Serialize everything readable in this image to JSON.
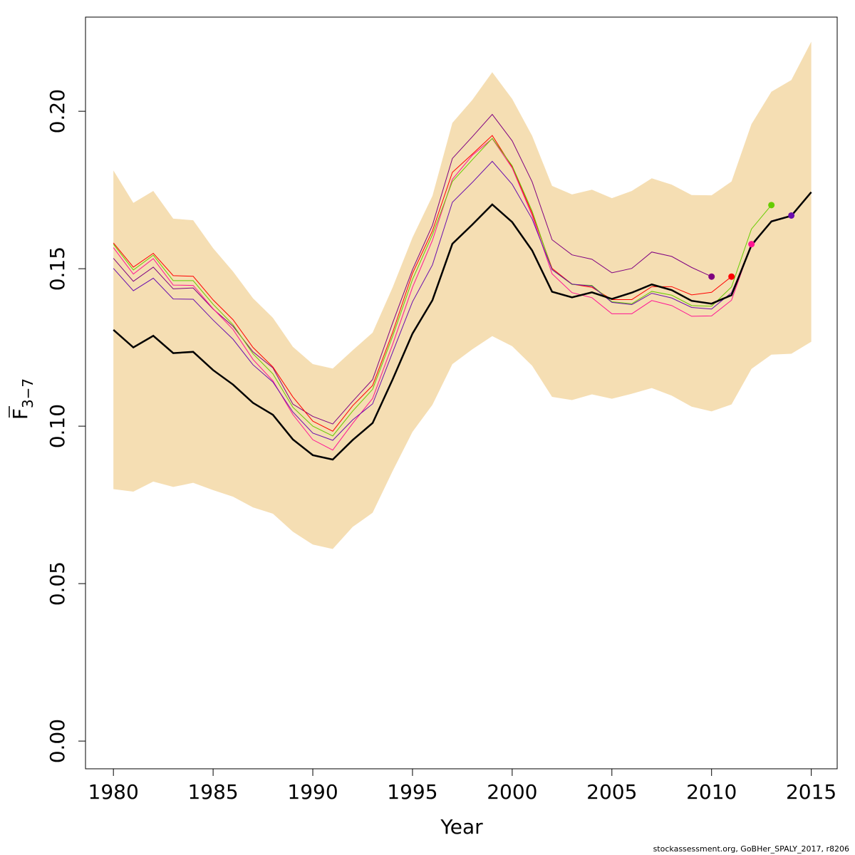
{
  "chart_data": {
    "type": "line",
    "xlabel": "Year",
    "ylabel_main": "F",
    "ylabel_sub": "3−7",
    "xlim": [
      1978.6,
      2016.3
    ],
    "ylim": [
      -0.0088,
      0.2299
    ],
    "xticks": [
      1980,
      1985,
      1990,
      1995,
      2000,
      2005,
      2010,
      2015
    ],
    "yticks": [
      0.0,
      0.05,
      0.1,
      0.15,
      0.2
    ],
    "ytick_labels": [
      "0.00",
      "0.05",
      "0.10",
      "0.15",
      "0.20"
    ],
    "grid": false,
    "colors": {
      "band": "#f5deb3",
      "main": "#000000",
      "peels": [
        "#800080",
        "#ff0000",
        "#ff1493",
        "#66cc00",
        "#6a0dad"
      ]
    },
    "confidence_band": {
      "x": [
        1980,
        1981,
        1982,
        1983,
        1984,
        1985,
        1986,
        1987,
        1988,
        1989,
        1990,
        1991,
        1992,
        1993,
        1994,
        1995,
        1996,
        1997,
        1998,
        1999,
        2000,
        2001,
        2002,
        2003,
        2004,
        2005,
        2006,
        2007,
        2008,
        2009,
        2010,
        2011,
        2012,
        2013,
        2014,
        2015
      ],
      "upper": [
        0.1812,
        0.1709,
        0.1747,
        0.1659,
        0.1654,
        0.1565,
        0.1491,
        0.1406,
        0.1344,
        0.1252,
        0.1197,
        0.1183,
        0.1241,
        0.1297,
        0.144,
        0.1599,
        0.1731,
        0.1963,
        0.2036,
        0.2124,
        0.2039,
        0.1922,
        0.1763,
        0.1736,
        0.1751,
        0.1724,
        0.1747,
        0.1787,
        0.1767,
        0.1734,
        0.1733,
        0.1777,
        0.1959,
        0.2062,
        0.2099,
        0.2221
      ],
      "lower": [
        0.08,
        0.0792,
        0.0824,
        0.0807,
        0.082,
        0.0797,
        0.0776,
        0.0742,
        0.0722,
        0.0665,
        0.0624,
        0.061,
        0.068,
        0.0725,
        0.0857,
        0.0982,
        0.1068,
        0.1197,
        0.1244,
        0.1286,
        0.1254,
        0.1192,
        0.1093,
        0.1083,
        0.1101,
        0.1087,
        0.1103,
        0.1121,
        0.1097,
        0.1062,
        0.1047,
        0.1069,
        0.1182,
        0.1227,
        0.123,
        0.1268
      ]
    },
    "series": [
      {
        "role": "main",
        "x": [
          1980,
          1981,
          1982,
          1983,
          1984,
          1985,
          1986,
          1987,
          1988,
          1989,
          1990,
          1991,
          1992,
          1993,
          1994,
          1995,
          1996,
          1997,
          1998,
          1999,
          2000,
          2001,
          2002,
          2003,
          2004,
          2005,
          2006,
          2007,
          2008,
          2009,
          2010,
          2011,
          2012,
          2013,
          2014,
          2015
        ],
        "values": [
          0.1306,
          0.125,
          0.1287,
          0.1232,
          0.1236,
          0.1178,
          0.1132,
          0.1074,
          0.1036,
          0.0958,
          0.0908,
          0.0894,
          0.0956,
          0.101,
          0.1148,
          0.1294,
          0.14,
          0.1579,
          0.164,
          0.1704,
          0.1648,
          0.1558,
          0.1427,
          0.1409,
          0.1425,
          0.1404,
          0.1424,
          0.145,
          0.1432,
          0.1398,
          0.1389,
          0.1416,
          0.1575,
          0.165,
          0.1668,
          0.1743
        ]
      },
      {
        "role": "peel",
        "x": [
          1980,
          1981,
          1982,
          1983,
          1984,
          1985,
          1986,
          1987,
          1988,
          1989,
          1990,
          1991,
          1992,
          1993,
          1994,
          1995,
          1996,
          1997,
          1998,
          1999,
          2000,
          2001,
          2002,
          2003,
          2004,
          2005,
          2006,
          2007,
          2008,
          2009,
          2010
        ],
        "values": [
          0.1533,
          0.146,
          0.1505,
          0.1436,
          0.1439,
          0.1372,
          0.1317,
          0.1236,
          0.1185,
          0.107,
          0.1031,
          0.1007,
          0.1079,
          0.1148,
          0.1327,
          0.1497,
          0.1638,
          0.185,
          0.1919,
          0.199,
          0.1906,
          0.1776,
          0.1592,
          0.1544,
          0.153,
          0.1487,
          0.1501,
          0.1553,
          0.1539,
          0.1504,
          0.1475
        ],
        "end_marker": true
      },
      {
        "role": "peel",
        "x": [
          1980,
          1981,
          1982,
          1983,
          1984,
          1985,
          1986,
          1987,
          1988,
          1989,
          1990,
          1991,
          1992,
          1993,
          1994,
          1995,
          1996,
          1997,
          1998,
          1999,
          2000,
          2001,
          2002,
          2003,
          2004,
          2005,
          2006,
          2007,
          2008,
          2009,
          2010,
          2011
        ],
        "values": [
          0.1582,
          0.1505,
          0.1549,
          0.1478,
          0.1476,
          0.1401,
          0.1338,
          0.125,
          0.1188,
          0.1093,
          0.1016,
          0.0984,
          0.1065,
          0.1129,
          0.1297,
          0.1485,
          0.162,
          0.1806,
          0.1864,
          0.1923,
          0.1823,
          0.1676,
          0.1501,
          0.1451,
          0.1441,
          0.1402,
          0.1402,
          0.1443,
          0.1443,
          0.1417,
          0.1425,
          0.1475
        ],
        "end_marker": true
      },
      {
        "role": "peel",
        "x": [
          1980,
          1981,
          1982,
          1983,
          1984,
          1985,
          1986,
          1987,
          1988,
          1989,
          1990,
          1991,
          1992,
          1993,
          1994,
          1995,
          1996,
          1997,
          1998,
          1999,
          2000,
          2001,
          2002,
          2003,
          2004,
          2005,
          2006,
          2007,
          2008,
          2009,
          2010,
          2011,
          2012
        ],
        "values": [
          0.1567,
          0.1483,
          0.1532,
          0.1448,
          0.1447,
          0.1373,
          0.1307,
          0.1212,
          0.1144,
          0.1037,
          0.0957,
          0.0924,
          0.1009,
          0.1088,
          0.1259,
          0.1441,
          0.159,
          0.1784,
          0.186,
          0.1913,
          0.182,
          0.1669,
          0.1484,
          0.1424,
          0.1408,
          0.1357,
          0.1357,
          0.1399,
          0.1383,
          0.1349,
          0.135,
          0.14,
          0.1578
        ],
        "end_marker": true
      },
      {
        "role": "peel",
        "x": [
          1980,
          1981,
          1982,
          1983,
          1984,
          1985,
          1986,
          1987,
          1988,
          1989,
          1990,
          1991,
          1992,
          1993,
          1994,
          1995,
          1996,
          1997,
          1998,
          1999,
          2000,
          2001,
          2002,
          2003,
          2004,
          2005,
          2006,
          2007,
          2008,
          2009,
          2010,
          2011,
          2012,
          2013
        ],
        "values": [
          0.1578,
          0.1496,
          0.1543,
          0.1462,
          0.1462,
          0.1387,
          0.1322,
          0.123,
          0.1166,
          0.106,
          0.1,
          0.0969,
          0.1048,
          0.1117,
          0.1285,
          0.1466,
          0.1608,
          0.1777,
          0.1846,
          0.1914,
          0.1827,
          0.1683,
          0.1497,
          0.145,
          0.1447,
          0.1395,
          0.1389,
          0.1428,
          0.1416,
          0.1383,
          0.1381,
          0.1442,
          0.1626,
          0.1702
        ],
        "end_marker": true
      },
      {
        "role": "peel",
        "x": [
          1980,
          1981,
          1982,
          1983,
          1984,
          1985,
          1986,
          1987,
          1988,
          1989,
          1990,
          1991,
          1992,
          1993,
          1994,
          1995,
          1996,
          1997,
          1998,
          1999,
          2000,
          2001,
          2002,
          2003,
          2004,
          2005,
          2006,
          2007,
          2008,
          2009,
          2010,
          2011,
          2012,
          2013,
          2014
        ],
        "values": [
          0.1501,
          0.143,
          0.147,
          0.1404,
          0.1403,
          0.1337,
          0.1276,
          0.1195,
          0.114,
          0.1045,
          0.0978,
          0.0955,
          0.102,
          0.1071,
          0.1234,
          0.1395,
          0.1512,
          0.1711,
          0.1774,
          0.1841,
          0.1768,
          0.1658,
          0.1497,
          0.1451,
          0.1445,
          0.1393,
          0.1386,
          0.1422,
          0.1407,
          0.1377,
          0.1372,
          0.1424,
          0.157,
          0.1652,
          0.1669
        ],
        "end_marker": true
      }
    ]
  },
  "footer": "stockassessment.org, GoBHer_SPALY_2017, r8206"
}
